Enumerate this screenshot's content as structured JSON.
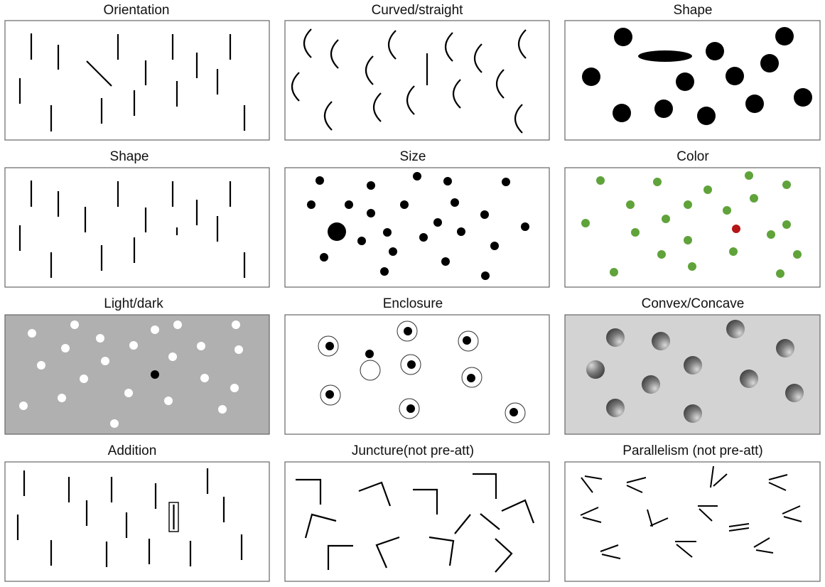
{
  "colors": {
    "ink": "#000000",
    "frame": "#666666",
    "green": "#5fa33a",
    "red": "#b51616",
    "light_gray": "#b0b0b0",
    "pale_gray": "#d3d3d3",
    "white": "#ffffff"
  },
  "panels": [
    {
      "key": "orientation",
      "title": "Orientation"
    },
    {
      "key": "curved",
      "title": "Curved/straight"
    },
    {
      "key": "shape_ellipse",
      "title": "Shape"
    },
    {
      "key": "shape_short",
      "title": "Shape"
    },
    {
      "key": "size",
      "title": "Size"
    },
    {
      "key": "color",
      "title": "Color"
    },
    {
      "key": "lightdark",
      "title": "Light/dark"
    },
    {
      "key": "enclosure",
      "title": "Enclosure"
    },
    {
      "key": "convex",
      "title": "Convex/Concave"
    },
    {
      "key": "addition",
      "title": "Addition"
    },
    {
      "key": "juncture",
      "title": "Juncture(not pre-att)"
    },
    {
      "key": "parallelism",
      "title": "Parallelism (not pre-att)"
    }
  ]
}
